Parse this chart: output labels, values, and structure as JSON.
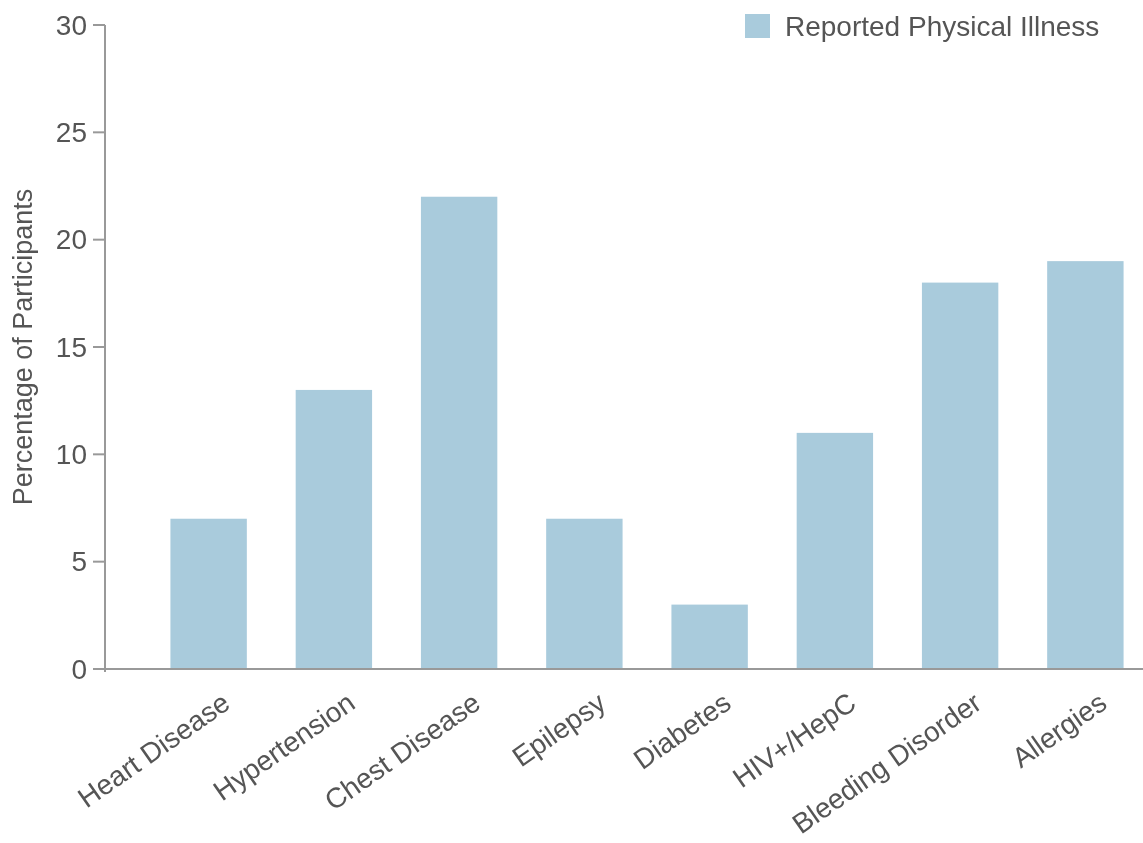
{
  "chart_data": {
    "type": "bar",
    "ylabel": "Percentage of Participants",
    "categories": [
      "Heart Disease",
      "Hypertension",
      "Chest Disease",
      "Epilepsy",
      "Diabetes",
      "HIV+/HepC",
      "Bleeding Disorder",
      "Allergies"
    ],
    "series": [
      {
        "name": "Reported Physical Illness",
        "color": "#a9cbdc",
        "values": [
          7,
          13,
          22,
          7,
          3,
          11,
          18,
          19
        ]
      }
    ],
    "ylim": [
      0,
      30
    ],
    "yticks": [
      0,
      5,
      10,
      15,
      20,
      25,
      30
    ],
    "grid": false,
    "legend": "top right"
  }
}
